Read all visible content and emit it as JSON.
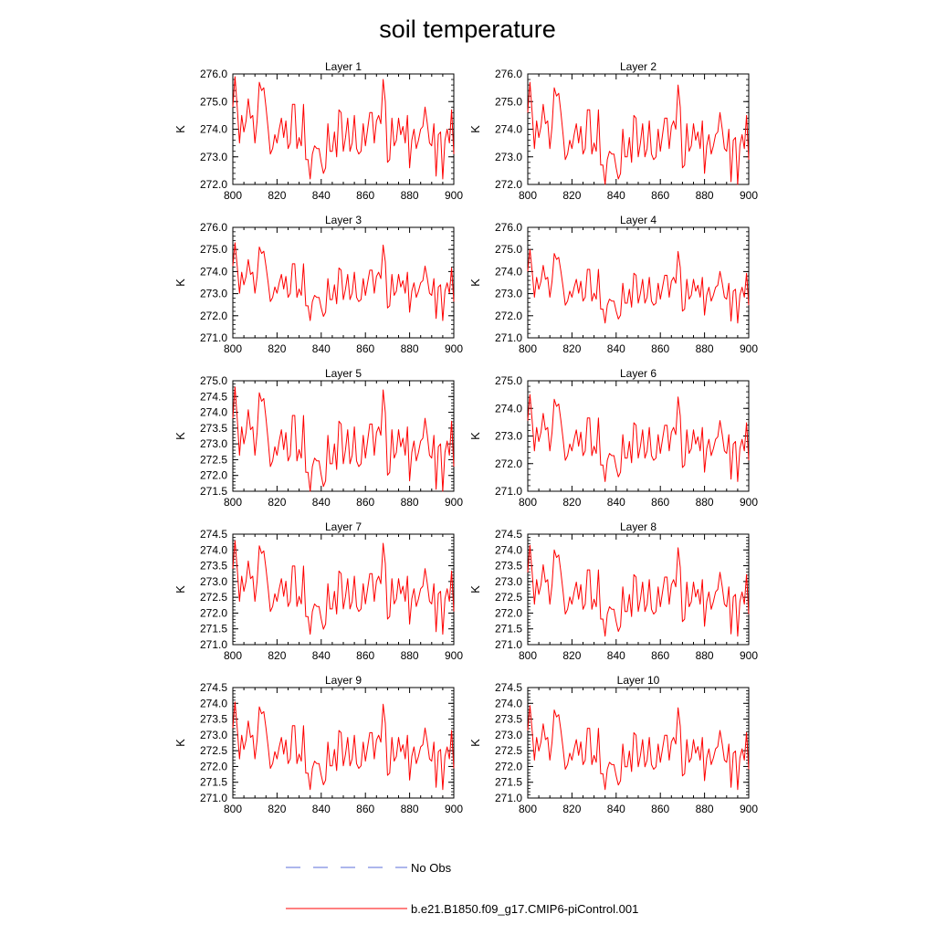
{
  "title": "soil temperature",
  "chart_data": {
    "type": "line",
    "title": "soil temperature",
    "xlabel": "",
    "ylabel": "K",
    "xlim": [
      800,
      900
    ],
    "xticks": [
      800,
      820,
      840,
      860,
      880,
      900
    ],
    "grid": false,
    "legend": {
      "placement": "bottom",
      "entries": [
        {
          "label": "No Obs",
          "color": "#5b6ed8",
          "style": "dashed"
        },
        {
          "label": "b.e21.B1850.f09_g17.CMIP6-piControl.001",
          "color": "#ff0000",
          "style": "solid"
        }
      ]
    },
    "panels": [
      {
        "title": "Layer 1",
        "ylim": [
          272.0,
          276.0
        ],
        "yticks": [
          "272.0",
          "273.0",
          "274.0",
          "275.0",
          "276.0"
        ],
        "offset": 0.0,
        "amp": 1.0,
        "series": [
          {
            "name": "No Obs",
            "values": []
          },
          {
            "name": "b.e21.B1850.f09_g17.CMIP6-piControl.001",
            "values": []
          }
        ]
      },
      {
        "title": "Layer 2",
        "ylim": [
          272.0,
          276.0
        ],
        "yticks": [
          "272.0",
          "273.0",
          "274.0",
          "275.0",
          "276.0"
        ],
        "offset": -0.2,
        "amp": 1.0,
        "series": [
          {
            "name": "No Obs",
            "values": []
          },
          {
            "name": "b.e21.B1850.f09_g17.CMIP6-piControl.001",
            "values": []
          }
        ]
      },
      {
        "title": "Layer 3",
        "ylim": [
          271.0,
          276.0
        ],
        "yticks": [
          "271.0",
          "272.0",
          "273.0",
          "274.0",
          "275.0",
          "276.0"
        ],
        "offset": -0.5,
        "amp": 0.95,
        "series": [
          {
            "name": "No Obs",
            "values": []
          },
          {
            "name": "b.e21.B1850.f09_g17.CMIP6-piControl.001",
            "values": []
          }
        ]
      },
      {
        "title": "Layer 4",
        "ylim": [
          271.0,
          276.0
        ],
        "yticks": [
          "271.0",
          "272.0",
          "273.0",
          "274.0",
          "275.0",
          "276.0"
        ],
        "offset": -0.7,
        "amp": 0.9,
        "series": [
          {
            "name": "No Obs",
            "values": []
          },
          {
            "name": "b.e21.B1850.f09_g17.CMIP6-piControl.001",
            "values": []
          }
        ]
      },
      {
        "title": "Layer 5",
        "ylim": [
          271.5,
          275.0
        ],
        "yticks": [
          "271.5",
          "272.0",
          "272.5",
          "273.0",
          "273.5",
          "274.0",
          "274.5",
          "275.0"
        ],
        "offset": -0.9,
        "amp": 0.9,
        "series": [
          {
            "name": "No Obs",
            "values": []
          },
          {
            "name": "b.e21.B1850.f09_g17.CMIP6-piControl.001",
            "values": []
          }
        ]
      },
      {
        "title": "Layer 6",
        "ylim": [
          271.0,
          275.0
        ],
        "yticks": [
          "271.0",
          "272.0",
          "273.0",
          "274.0",
          "275.0"
        ],
        "offset": -1.1,
        "amp": 0.85,
        "series": [
          {
            "name": "No Obs",
            "values": []
          },
          {
            "name": "b.e21.B1850.f09_g17.CMIP6-piControl.001",
            "values": []
          }
        ]
      },
      {
        "title": "Layer 7",
        "ylim": [
          271.0,
          274.5
        ],
        "yticks": [
          "271.0",
          "271.5",
          "272.0",
          "272.5",
          "273.0",
          "273.5",
          "274.0",
          "274.5"
        ],
        "offset": -1.2,
        "amp": 0.8,
        "series": [
          {
            "name": "No Obs",
            "values": []
          },
          {
            "name": "b.e21.B1850.f09_g17.CMIP6-piControl.001",
            "values": []
          }
        ]
      },
      {
        "title": "Layer 8",
        "ylim": [
          271.0,
          274.5
        ],
        "yticks": [
          "271.0",
          "271.5",
          "272.0",
          "272.5",
          "273.0",
          "273.5",
          "274.0",
          "274.5"
        ],
        "offset": -1.3,
        "amp": 0.78,
        "series": [
          {
            "name": "No Obs",
            "values": []
          },
          {
            "name": "b.e21.B1850.f09_g17.CMIP6-piControl.001",
            "values": []
          }
        ]
      },
      {
        "title": "Layer 9",
        "ylim": [
          271.0,
          274.5
        ],
        "yticks": [
          "271.0",
          "271.5",
          "272.0",
          "272.5",
          "273.0",
          "273.5",
          "274.0",
          "274.5"
        ],
        "offset": -1.35,
        "amp": 0.75,
        "series": [
          {
            "name": "No Obs",
            "values": []
          },
          {
            "name": "b.e21.B1850.f09_g17.CMIP6-piControl.001",
            "values": []
          }
        ]
      },
      {
        "title": "Layer 10",
        "ylim": [
          271.0,
          274.5
        ],
        "yticks": [
          "271.0",
          "271.5",
          "272.0",
          "272.5",
          "273.0",
          "273.5",
          "274.0",
          "274.5"
        ],
        "offset": -1.4,
        "amp": 0.72,
        "series": [
          {
            "name": "No Obs",
            "values": []
          },
          {
            "name": "b.e21.B1850.f09_g17.CMIP6-piControl.001",
            "values": []
          }
        ]
      }
    ],
    "base_series": {
      "x_start": 800,
      "x_step": 1,
      "values": [
        274.8,
        275.9,
        274.8,
        273.5,
        274.5,
        273.9,
        274.3,
        275.1,
        274.4,
        274.5,
        273.5,
        274.3,
        275.7,
        275.4,
        275.5,
        274.8,
        274.0,
        273.1,
        273.3,
        273.8,
        273.5,
        274.0,
        274.4,
        273.7,
        274.3,
        273.3,
        273.5,
        274.9,
        274.9,
        273.3,
        273.7,
        273.4,
        274.9,
        272.9,
        272.9,
        272.2,
        273.1,
        273.4,
        273.3,
        273.3,
        272.8,
        272.4,
        272.6,
        274.2,
        273.2,
        273.2,
        273.9,
        273.0,
        274.7,
        274.6,
        273.2,
        273.7,
        274.4,
        273.2,
        273.5,
        274.5,
        273.3,
        273.1,
        273.2,
        274.2,
        273.4,
        274.0,
        274.6,
        274.6,
        273.5,
        274.3,
        274.5,
        274.2,
        275.8,
        275.0,
        272.8,
        272.9,
        274.4,
        273.4,
        273.6,
        274.4,
        273.8,
        274.1,
        273.5,
        274.5,
        272.6,
        273.6,
        274.0,
        273.3,
        273.6,
        274.0,
        274.1,
        274.8,
        274.2,
        273.5,
        273.4,
        274.2,
        272.3,
        273.8,
        273.9,
        272.2,
        273.6,
        274.0,
        273.5,
        274.7,
        273.1
      ]
    }
  }
}
